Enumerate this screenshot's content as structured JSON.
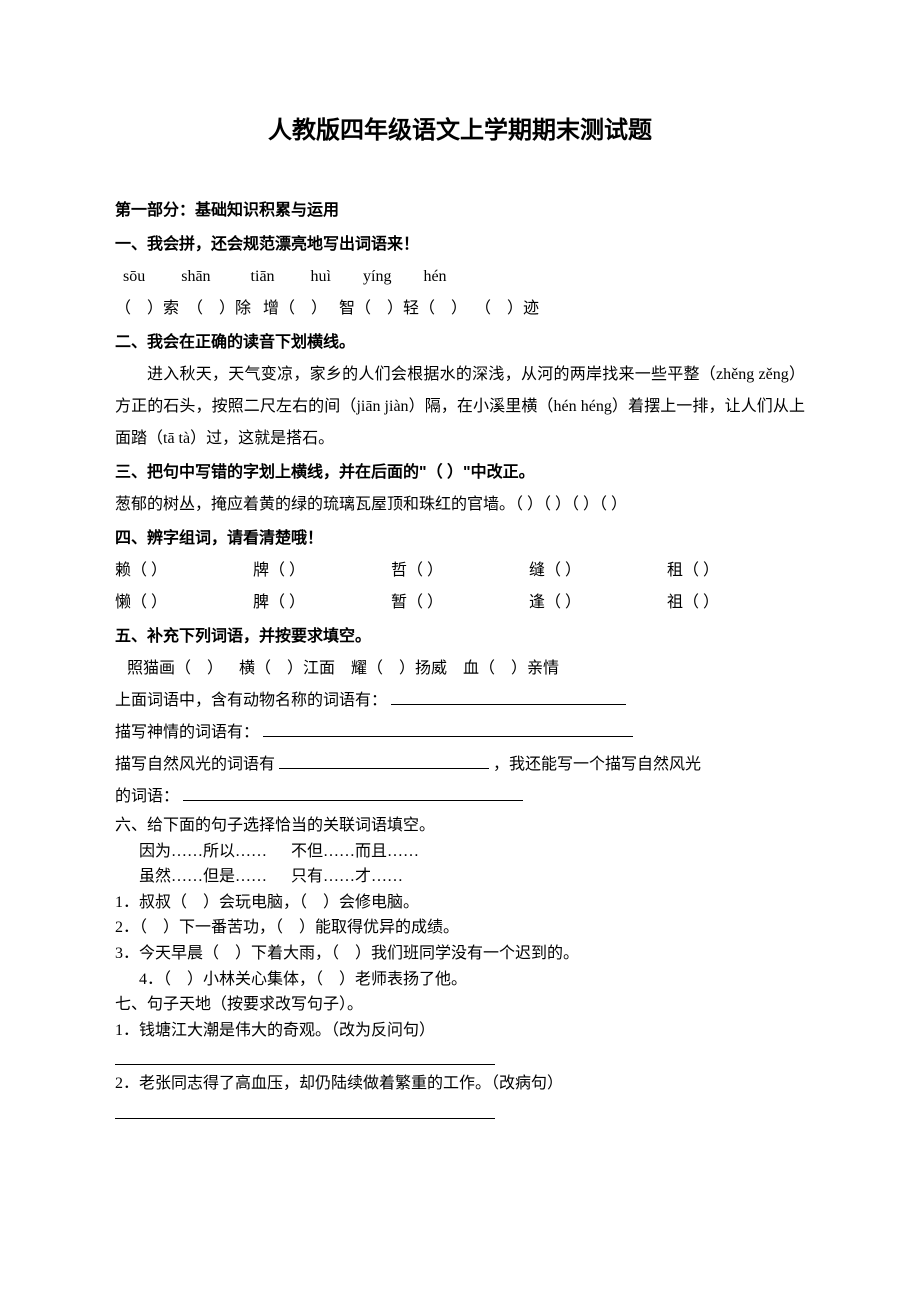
{
  "title": "人教版四年级语文上学期期末测试题",
  "part1_header": "第一部分：基础知识积累与运用",
  "q1": {
    "header": "一、我会拼，还会规范漂亮地写出词语来！",
    "pinyin": "  sōu         shān          tiān         huì        yíng        hén",
    "hanzi": "（    ）索  （    ）除   增（    ）   智（    ）轻（    ）  （    ）迹"
  },
  "q2": {
    "header": "二、我会在正确的读音下划横线。",
    "text": "进入秋天，天气变凉，家乡的人们会根据水的深浅，从河的两岸找来一些平整（zhěng zěng）方正的石头，按照二尺左右的间（jiān  jiàn）隔，在小溪里横（hén héng）着摆上一排，让人们从上面踏（tā  tà）过，这就是搭石。"
  },
  "q3": {
    "header": "三、把句中写错的字划上横线，并在后面的\"（  ）\"中改正。",
    "text": "葱郁的树丛，掩应着黄的绿的琉璃瓦屋顶和珠红的官墙。（  ）（  ）（  ）（  ）"
  },
  "q4": {
    "header": "四、辨字组词，请看清楚哦！",
    "row1": [
      "赖（        ）",
      "牌（        ）",
      "哲（        ）",
      "缝（        ）",
      "租（        ）"
    ],
    "row2": [
      "懒（        ）",
      "脾（        ）",
      "暂（        ）",
      "逢（        ）",
      "祖（        ）"
    ]
  },
  "q5": {
    "header": "五、补充下列词语，并按要求填空。",
    "line1": "   照猫画（    ）    横（    ）江面    耀（    ）扬威    血（    ）亲情",
    "line2_a": "上面词语中，含有动物名称的词语有：",
    "line3_a": "描写神情的词语有：",
    "line4_a": "描写自然风光的词语有",
    "line4_b": "，我还能写一个描写自然风光",
    "line5_a": "的词语：",
    "blank2_w": 235,
    "blank3_w": 370,
    "blank4_w": 210,
    "blank5_w": 340
  },
  "q6": {
    "header": "六、给下面的句子选择恰当的关联词语填空。",
    "opt1": "      因为……所以……      不但……而且……",
    "opt2": "      虽然……但是……      只有……才……",
    "s1": "1．叔叔（    ）会玩电脑，（    ）会修电脑。",
    "s2": "2．（    ）下一番苦功，（    ）能取得优异的成绩。",
    "s3": "3．今天早晨（    ）下着大雨，（    ）我们班同学没有一个迟到的。",
    "s4": "      4．（    ）小林关心集体，（    ）老师表扬了他。"
  },
  "q7": {
    "header": "七、句子天地（按要求改写句子）。",
    "s1": "1．钱塘江大潮是伟大的奇观。（改为反问句）",
    "s2": "2．老张同志得了高血压，却仍陆续做着繁重的工作。（改病句）"
  }
}
